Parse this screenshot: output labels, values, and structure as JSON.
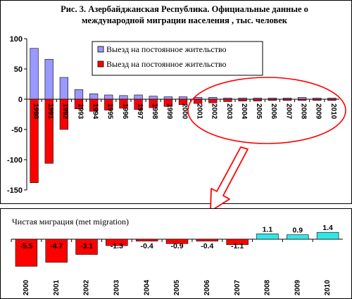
{
  "chart_data": [
    {
      "type": "bar",
      "title": "Рис. 3. Азербайджанская Республика. Официальные данные о международной миграции населения , тыс. человек",
      "title_lines": [
        "Рис. 3. Азербайджанская Республика. Официальные данные о",
        "международной миграции населения , тыс. человек"
      ],
      "categories": [
        "1990",
        "1991",
        "1992",
        "1993",
        "1994",
        "1995",
        "1996",
        "1997",
        "1998",
        "1999",
        "2000",
        "2001",
        "2002",
        "2003",
        "2004",
        "2005",
        "2006",
        "2007",
        "2008",
        "2009",
        "2010"
      ],
      "series": [
        {
          "name": "Выезд на постоянное жительство",
          "color": "#9999ff",
          "values": [
            84,
            66,
            36,
            16,
            9,
            7,
            6,
            7,
            5,
            4,
            4,
            3,
            3,
            2,
            2,
            2,
            2,
            2,
            3,
            2,
            2
          ]
        },
        {
          "name": "Выезд на постоянное жительство",
          "color": "#ff0000",
          "values": [
            -138,
            -106,
            -50,
            -16,
            -20,
            -18,
            -15,
            -17,
            -14,
            -12,
            -9,
            -7,
            -6,
            -4,
            -3,
            -3,
            -2,
            -2,
            -2,
            -2,
            -2
          ]
        }
      ],
      "yticks": [
        100,
        50,
        0,
        -50,
        -100,
        -150
      ],
      "ylim": [
        -150,
        100
      ],
      "legend_position": "top"
    },
    {
      "type": "bar",
      "title": "Чистая миграция (met migration)",
      "categories": [
        "2000",
        "2001",
        "2002",
        "2003",
        "2004",
        "2005",
        "2006",
        "2007",
        "2008",
        "2009",
        "2010"
      ],
      "values": [
        -5.5,
        -4.7,
        -3.1,
        -1.3,
        -0.4,
        -0.9,
        -0.4,
        -1.1,
        1.1,
        0.9,
        1.4
      ],
      "labels": [
        "-5.5",
        "-4.7",
        "-3.1",
        "-1.3",
        "-0.4",
        "-0.9",
        "-0.4",
        "-1.1",
        "1.1",
        "0.9",
        "1.4"
      ],
      "positive_color": "#33e6e6",
      "negative_color": "#ff0000"
    }
  ]
}
